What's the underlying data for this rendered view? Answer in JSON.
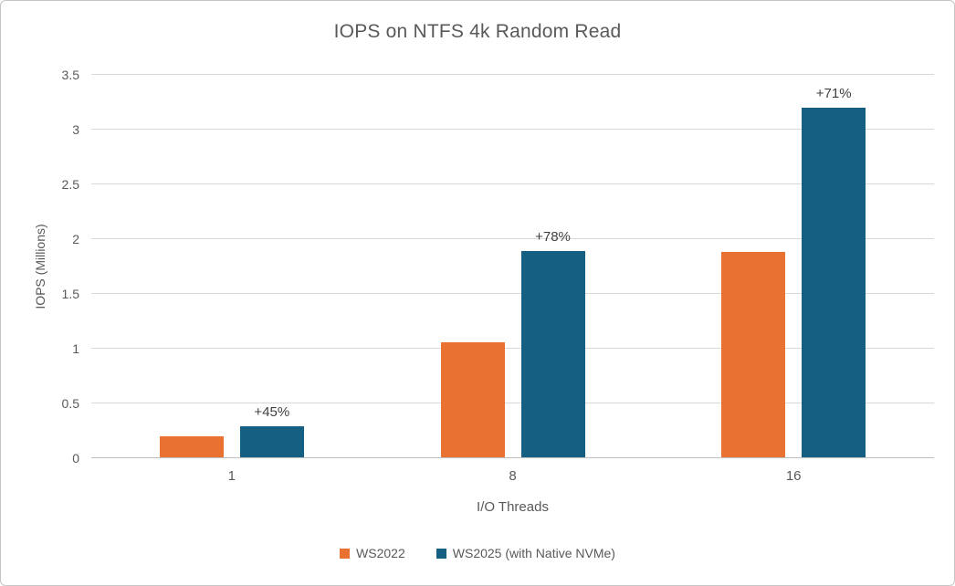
{
  "chart_data": {
    "type": "bar",
    "title": "IOPS on NTFS 4k Random Read",
    "xlabel": "I/O Threads",
    "ylabel": "IOPS (Millions)",
    "categories": [
      "1",
      "8",
      "16"
    ],
    "series": [
      {
        "name": "WS2022",
        "color": "#E97132",
        "values": [
          0.2,
          1.06,
          1.88
        ]
      },
      {
        "name": "WS2025 (with Native NVMe)",
        "color": "#156082",
        "values": [
          0.29,
          1.89,
          3.2
        ],
        "point_labels": [
          "+45%",
          "+78%",
          "+71%"
        ]
      }
    ],
    "ylim": [
      0,
      3.5
    ],
    "ytick_step": 0.5,
    "yticks": [
      "0",
      "0.5",
      "1",
      "1.5",
      "2",
      "2.5",
      "3",
      "3.5"
    ],
    "grid": true,
    "legend_position": "bottom",
    "style": {
      "background": "#FFFFFF",
      "border": "#C4C4C4",
      "gridline": "#D9D9D9",
      "axis_line": "#BFBFBF",
      "title_text": "#595959",
      "axis_text": "#595959",
      "data_label_text": "#404040"
    }
  }
}
